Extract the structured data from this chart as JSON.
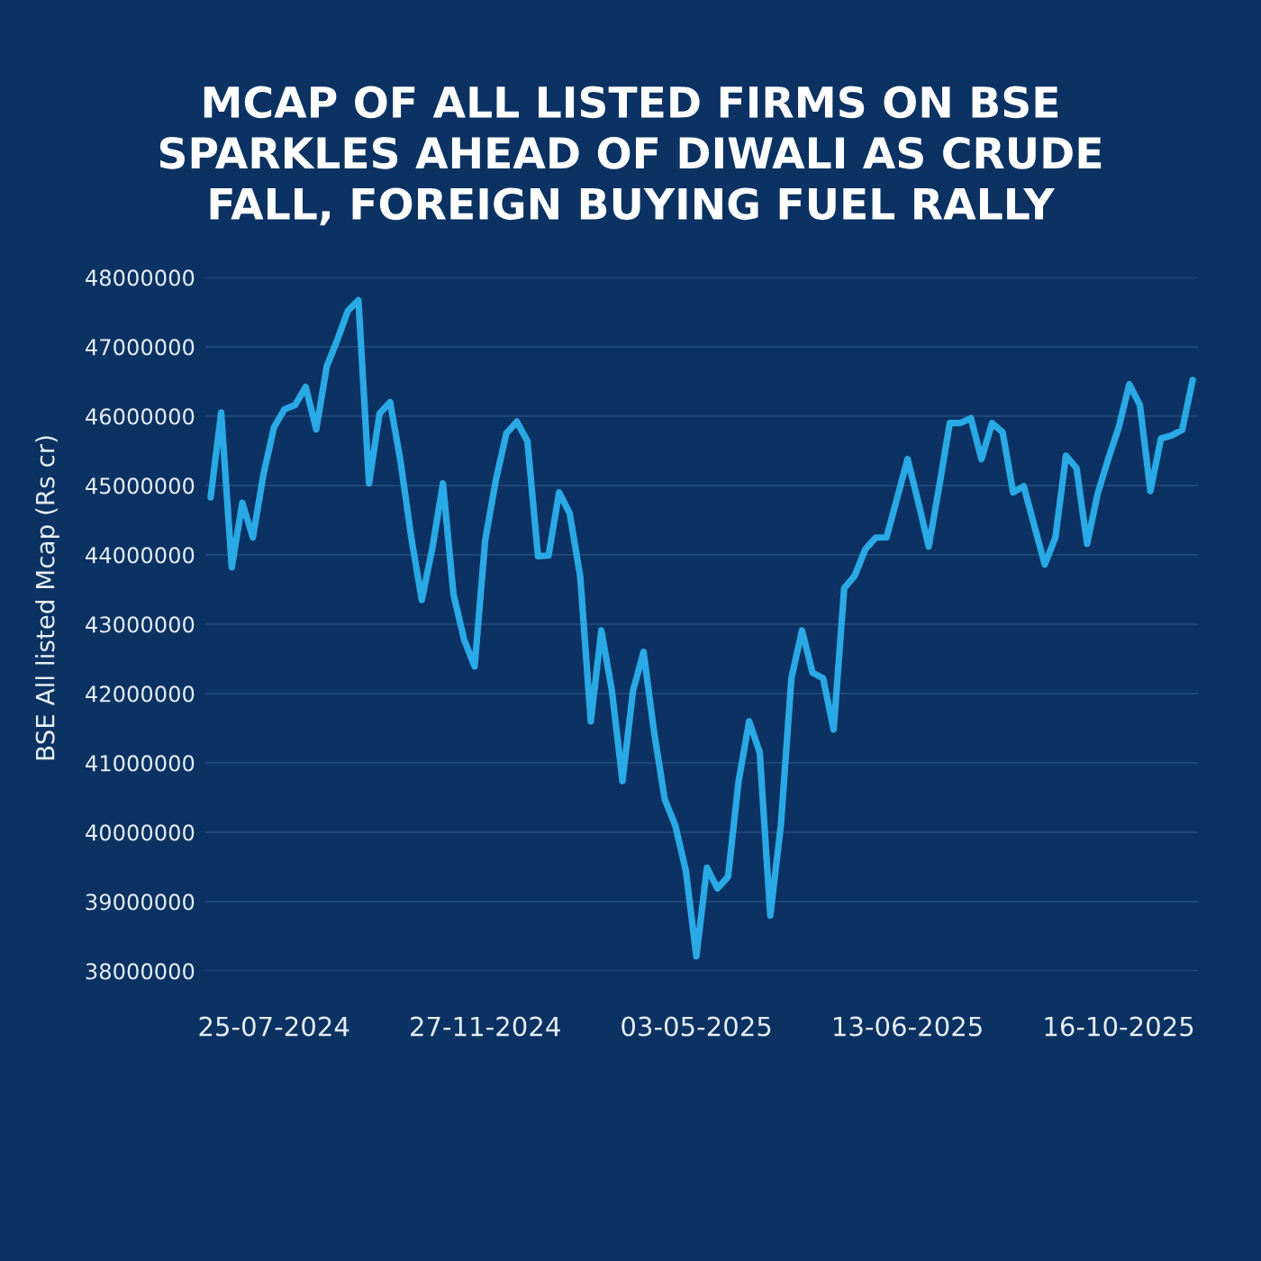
{
  "chart_data": {
    "type": "line",
    "title": "MCAP OF ALL LISTED FIRMS ON BSE\nSPARKLES AHEAD OF DIWALI AS CRUDE\nFALL, FOREIGN BUYING FUEL RALLY",
    "ylabel": "BSE All listed Mcap (Rs cr)",
    "categories": [
      null,
      null,
      null,
      null,
      null,
      null,
      "25-07-2024",
      null,
      null,
      null,
      null,
      null,
      null,
      null,
      null,
      null,
      null,
      null,
      null,
      null,
      null,
      null,
      null,
      null,
      null,
      null,
      "27-11-2024",
      null,
      null,
      null,
      null,
      null,
      null,
      null,
      null,
      null,
      null,
      null,
      null,
      null,
      null,
      null,
      null,
      null,
      null,
      null,
      "03-05-2025",
      null,
      null,
      null,
      null,
      null,
      null,
      null,
      null,
      null,
      null,
      null,
      null,
      null,
      null,
      null,
      null,
      null,
      null,
      null,
      "13-06-2025",
      null,
      null,
      null,
      null,
      null,
      null,
      null,
      null,
      null,
      null,
      null,
      null,
      null,
      null,
      null,
      null,
      null,
      null,
      null,
      "16-10-2025",
      null,
      null,
      null,
      null,
      null,
      null,
      null
    ],
    "series": [
      {
        "color": "#29a9e6",
        "values": [
          44830000,
          46050000,
          43820000,
          44750000,
          44250000,
          45160000,
          45840000,
          46100000,
          46160000,
          46420000,
          45810000,
          46720000,
          47100000,
          47520000,
          47670000,
          45030000,
          46040000,
          46200000,
          45330000,
          44250000,
          43350000,
          44100000,
          45030000,
          43430000,
          42780000,
          42390000,
          44210000,
          45070000,
          45750000,
          45920000,
          45640000,
          43980000,
          43990000,
          44900000,
          44600000,
          43690000,
          41600000,
          42910000,
          42040000,
          40740000,
          42040000,
          42600000,
          41440000,
          40480000,
          40100000,
          39450000,
          38210000,
          39490000,
          39190000,
          39360000,
          40740000,
          41600000,
          41150000,
          38800000,
          40100000,
          42220000,
          42910000,
          42300000,
          42220000,
          41480000,
          43520000,
          43700000,
          44080000,
          44250000,
          44250000,
          44810000,
          45380000,
          44770000,
          44120000,
          44990000,
          45900000,
          45900000,
          45970000,
          45380000,
          45900000,
          45770000,
          44900000,
          44990000,
          44420000,
          43860000,
          44250000,
          45430000,
          45250000,
          44160000,
          44880000,
          45380000,
          45840000,
          46460000,
          46160000,
          44920000,
          45680000,
          45720000,
          45800000,
          46520000
        ]
      }
    ],
    "ylim": [
      38000000,
      48000000
    ],
    "yticks": [
      38000000,
      39000000,
      40000000,
      41000000,
      42000000,
      43000000,
      44000000,
      45000000,
      46000000,
      47000000,
      48000000
    ],
    "grid": "y",
    "line_style": "solid"
  }
}
